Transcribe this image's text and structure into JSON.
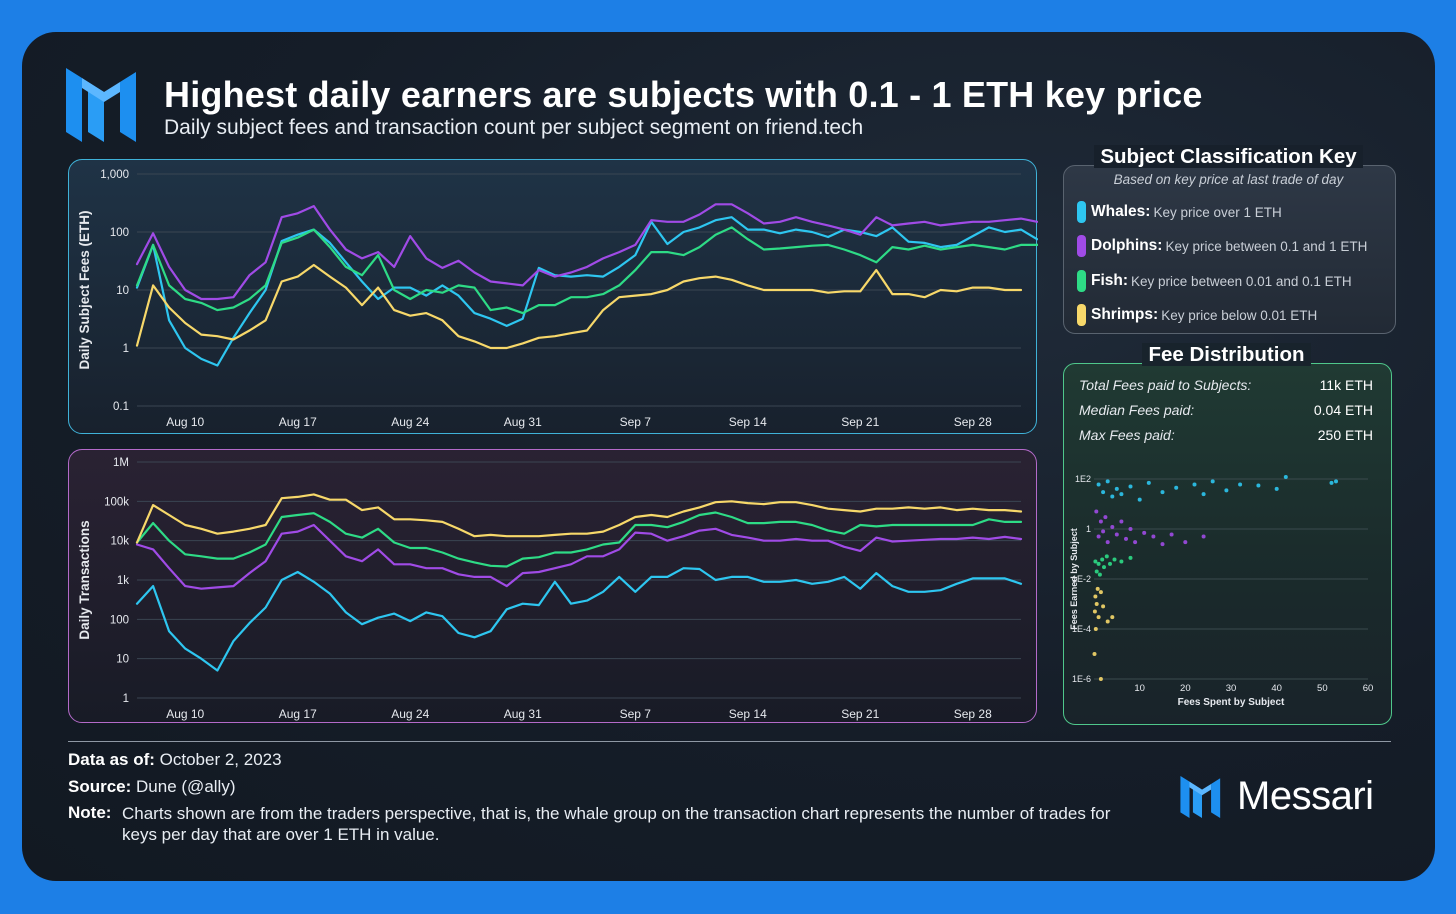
{
  "header": {
    "title": "Highest daily earners are subjects with 0.1 - 1 ETH key price",
    "subtitle": "Daily subject fees and transaction count per subject segment on friend.tech"
  },
  "colors": {
    "whales": "#2ec6f0",
    "dolphins": "#a04be6",
    "fish": "#2edb86",
    "shrimps": "#f7d86a",
    "brand_blue": "#1d7fe6"
  },
  "legend": {
    "title": "Subject Classification Key",
    "subtitle": "Based on key price at last trade of day",
    "items": [
      {
        "name": "Whales:",
        "desc": "Key price over 1 ETH"
      },
      {
        "name": "Dolphins:",
        "desc": "Key price between 0.1 and 1 ETH"
      },
      {
        "name": "Fish:",
        "desc": "Key price between 0.01 and 0.1 ETH"
      },
      {
        "name": "Shrimps:",
        "desc": "Key price below 0.01 ETH"
      }
    ]
  },
  "fee_distribution": {
    "title": "Fee Distribution",
    "stats": [
      {
        "label": "Total Fees paid to Subjects:",
        "value": "11k ETH"
      },
      {
        "label": "Median Fees paid:",
        "value": "0.04 ETH"
      },
      {
        "label": "Max Fees paid:",
        "value": "250 ETH"
      }
    ]
  },
  "footer": {
    "date_label": "Data as of:",
    "date_value": "October 2, 2023",
    "source_label": "Source:",
    "source_value": "Dune (@ally)",
    "note_label": "Note:",
    "note_value": "Charts shown are from the traders perspective, that is, the whale group on the transaction chart represents the number of trades for keys per day that are over 1 ETH in value.",
    "brand": "Messari"
  },
  "chart_data": [
    {
      "type": "line",
      "ylabel": "Daily Subject Fees (ETH)",
      "y_scale": "log",
      "ylim": [
        0.1,
        1000
      ],
      "y_ticks": [
        0.1,
        1,
        10,
        100,
        1000
      ],
      "y_tick_labels": [
        "0.1",
        "1",
        "10",
        "100",
        "1,000"
      ],
      "x_start": "2023-08-07",
      "x_end": "2023-10-01",
      "x_ticks": [
        "2023-08-10",
        "2023-08-17",
        "2023-08-24",
        "2023-08-31",
        "2023-09-07",
        "2023-09-14",
        "2023-09-21",
        "2023-09-28"
      ],
      "x_tick_labels": [
        "Aug 10",
        "Aug 17",
        "Aug 24",
        "Aug 31",
        "Sep 7",
        "Sep 14",
        "Sep 21",
        "Sep 28"
      ],
      "series": [
        {
          "name": "Whales",
          "color": "#2ec6f0",
          "values": [
            11,
            60,
            3,
            1,
            0.65,
            0.5,
            1.5,
            4,
            10,
            70,
            90,
            110,
            65,
            30,
            14,
            7,
            11,
            11,
            8,
            12,
            8,
            4,
            3.2,
            2.4,
            3.2,
            24,
            18,
            17,
            18,
            17,
            25,
            40,
            150,
            62,
            100,
            120,
            160,
            180,
            110,
            110,
            95,
            110,
            100,
            82,
            110,
            100,
            85,
            120,
            68,
            65,
            55,
            60,
            85,
            120,
            100,
            110,
            75
          ]
        },
        {
          "name": "Dolphins",
          "color": "#a04be6",
          "values": [
            28,
            95,
            25,
            10,
            7,
            7,
            7.5,
            18,
            30,
            180,
            210,
            280,
            110,
            50,
            35,
            45,
            25,
            85,
            35,
            24,
            32,
            20,
            14,
            13,
            12,
            22,
            17,
            20,
            25,
            35,
            45,
            60,
            160,
            150,
            150,
            200,
            300,
            300,
            210,
            140,
            150,
            180,
            150,
            130,
            110,
            90,
            180,
            130,
            140,
            150,
            130,
            140,
            150,
            150,
            160,
            170,
            150
          ]
        },
        {
          "name": "Fish",
          "color": "#2edb86",
          "values": [
            12,
            60,
            12,
            7,
            6,
            4.5,
            5,
            7,
            12,
            65,
            80,
            110,
            55,
            25,
            18,
            40,
            10,
            7,
            10,
            9,
            12,
            11,
            4.5,
            5,
            4,
            5.5,
            5.5,
            7.5,
            7.5,
            8.5,
            12,
            22,
            45,
            45,
            40,
            55,
            90,
            120,
            75,
            50,
            52,
            55,
            58,
            60,
            50,
            40,
            30,
            55,
            50,
            58,
            50,
            55,
            60,
            55,
            50,
            60,
            60,
            60
          ]
        },
        {
          "name": "Shrimps",
          "color": "#f7d86a",
          "values": [
            1.1,
            12,
            5,
            2.7,
            1.7,
            1.6,
            1.4,
            2,
            3,
            14,
            17,
            27,
            17,
            11,
            5.5,
            11,
            4.5,
            3.6,
            4,
            3,
            1.6,
            1.3,
            1,
            1,
            1.2,
            1.5,
            1.6,
            1.8,
            2,
            4.5,
            7.5,
            8,
            8.5,
            10,
            14,
            16,
            17,
            15,
            12,
            10,
            10,
            10,
            10,
            9,
            9.5,
            9.5,
            22,
            8.5,
            8.5,
            7.5,
            10,
            9.5,
            11,
            11,
            10,
            10
          ]
        }
      ]
    },
    {
      "type": "line",
      "ylabel": "Daily Transactions",
      "y_scale": "log",
      "ylim": [
        1,
        1000000
      ],
      "y_ticks": [
        1,
        10,
        100,
        1000,
        10000,
        100000,
        1000000
      ],
      "y_tick_labels": [
        "1",
        "10",
        "100",
        "1k",
        "10k",
        "100k",
        "1M"
      ],
      "x_start": "2023-08-07",
      "x_end": "2023-10-01",
      "x_ticks": [
        "2023-08-10",
        "2023-08-17",
        "2023-08-24",
        "2023-08-31",
        "2023-09-07",
        "2023-09-14",
        "2023-09-21",
        "2023-09-28"
      ],
      "x_tick_labels": [
        "Aug 10",
        "Aug 17",
        "Aug 24",
        "Aug 31",
        "Sep 7",
        "Sep 14",
        "Sep 21",
        "Sep 28"
      ],
      "series": [
        {
          "name": "Whales",
          "color": "#2ec6f0",
          "values": [
            250,
            700,
            50,
            18,
            10,
            5,
            28,
            80,
            200,
            1000,
            1600,
            900,
            450,
            150,
            75,
            110,
            140,
            90,
            150,
            120,
            45,
            35,
            50,
            180,
            250,
            230,
            900,
            250,
            300,
            500,
            1200,
            500,
            1200,
            1200,
            2000,
            1900,
            1000,
            1200,
            1200,
            900,
            900,
            1000,
            800,
            900,
            1200,
            600,
            1500,
            700,
            500,
            500,
            550,
            800,
            1100,
            1100,
            1100,
            800
          ]
        },
        {
          "name": "Dolphins",
          "color": "#a04be6",
          "values": [
            8000,
            6000,
            2000,
            700,
            600,
            650,
            700,
            1500,
            3000,
            15000,
            17000,
            25000,
            10000,
            4000,
            3000,
            6000,
            2500,
            2500,
            2000,
            2000,
            1400,
            1200,
            1200,
            700,
            1500,
            1600,
            2000,
            2500,
            4000,
            4000,
            6000,
            16000,
            15000,
            10000,
            13000,
            18000,
            20000,
            14000,
            12000,
            10000,
            10000,
            11000,
            10000,
            10000,
            7000,
            5500,
            12000,
            9500,
            10000,
            10500,
            11000,
            11000,
            12000,
            11000,
            12500,
            11000
          ]
        },
        {
          "name": "Fish",
          "color": "#2edb86",
          "values": [
            9000,
            28000,
            10000,
            4500,
            4000,
            3500,
            3500,
            5000,
            8000,
            40000,
            45000,
            50000,
            30000,
            15000,
            12000,
            20000,
            9000,
            6500,
            6500,
            5000,
            3500,
            2800,
            2300,
            2200,
            3500,
            3800,
            5000,
            5000,
            6000,
            8000,
            9000,
            25000,
            25000,
            22000,
            30000,
            45000,
            52000,
            40000,
            28000,
            28000,
            30000,
            30000,
            25000,
            18000,
            15000,
            25000,
            23000,
            25000,
            25000,
            25000,
            25000,
            25000,
            25000,
            35000,
            30000,
            30000
          ]
        },
        {
          "name": "Shrimps",
          "color": "#f7d86a",
          "values": [
            9000,
            80000,
            45000,
            25000,
            20000,
            15000,
            17000,
            20000,
            25000,
            120000,
            130000,
            150000,
            110000,
            110000,
            60000,
            70000,
            35000,
            35000,
            33000,
            30000,
            20000,
            13000,
            14000,
            13000,
            13000,
            13000,
            14000,
            15000,
            15000,
            17000,
            25000,
            40000,
            45000,
            40000,
            55000,
            70000,
            95000,
            100000,
            90000,
            85000,
            95000,
            95000,
            80000,
            65000,
            60000,
            55000,
            65000,
            65000,
            70000,
            65000,
            70000,
            60000,
            65000,
            60000,
            60000,
            55000
          ]
        }
      ]
    },
    {
      "type": "scatter",
      "xlabel": "Fees Spent by Subject",
      "ylabel": "Fees Earned by Subject",
      "y_scale": "log",
      "xlim": [
        0,
        60
      ],
      "ylim": [
        1e-06,
        100
      ],
      "x_ticks": [
        10,
        20,
        30,
        40,
        50,
        60
      ],
      "x_tick_labels": [
        "10",
        "20",
        "30",
        "40",
        "50",
        "60"
      ],
      "y_ticks": [
        1e-06,
        0.0001,
        0.01,
        1,
        100
      ],
      "y_tick_labels": [
        "1E-6",
        "1E-4",
        "1E-2",
        "1",
        "1E2"
      ],
      "series": [
        {
          "name": "Whales",
          "color": "#2ec6f0",
          "points": [
            [
              1,
              60
            ],
            [
              2,
              30
            ],
            [
              3,
              80
            ],
            [
              4,
              20
            ],
            [
              5,
              40
            ],
            [
              6,
              25
            ],
            [
              8,
              50
            ],
            [
              10,
              15
            ],
            [
              12,
              70
            ],
            [
              15,
              30
            ],
            [
              18,
              45
            ],
            [
              22,
              60
            ],
            [
              24,
              25
            ],
            [
              26,
              80
            ],
            [
              29,
              35
            ],
            [
              32,
              60
            ],
            [
              36,
              55
            ],
            [
              40,
              40
            ],
            [
              42,
              120
            ],
            [
              52,
              70
            ],
            [
              53,
              80
            ]
          ]
        },
        {
          "name": "Dolphins",
          "color": "#a04be6",
          "points": [
            [
              0.5,
              5
            ],
            [
              1,
              0.5
            ],
            [
              1.5,
              2
            ],
            [
              2,
              0.8
            ],
            [
              2.5,
              3
            ],
            [
              3,
              0.3
            ],
            [
              4,
              1.2
            ],
            [
              5,
              0.6
            ],
            [
              6,
              2
            ],
            [
              7,
              0.4
            ],
            [
              8,
              1
            ],
            [
              9,
              0.3
            ],
            [
              11,
              0.7
            ],
            [
              13,
              0.5
            ],
            [
              15,
              0.25
            ],
            [
              17,
              0.6
            ],
            [
              20,
              0.3
            ],
            [
              24,
              0.5
            ]
          ]
        },
        {
          "name": "Fish",
          "color": "#2edb86",
          "points": [
            [
              0.3,
              0.05
            ],
            [
              0.6,
              0.02
            ],
            [
              1,
              0.04
            ],
            [
              1.3,
              0.015
            ],
            [
              1.8,
              0.06
            ],
            [
              2.2,
              0.03
            ],
            [
              2.8,
              0.08
            ],
            [
              3.5,
              0.04
            ],
            [
              4.5,
              0.06
            ],
            [
              6,
              0.05
            ],
            [
              8,
              0.07
            ]
          ]
        },
        {
          "name": "Shrimps",
          "color": "#f7d86a",
          "points": [
            [
              0.1,
              1e-05
            ],
            [
              0.2,
              0.0005
            ],
            [
              0.3,
              0.002
            ],
            [
              0.4,
              0.0001
            ],
            [
              0.6,
              0.001
            ],
            [
              0.8,
              0.004
            ],
            [
              1,
              0.0003
            ],
            [
              1.5,
              0.003
            ],
            [
              2,
              0.0008
            ],
            [
              3,
              0.0002
            ],
            [
              1.5,
              1e-06
            ],
            [
              4,
              0.0003
            ]
          ]
        }
      ]
    }
  ]
}
